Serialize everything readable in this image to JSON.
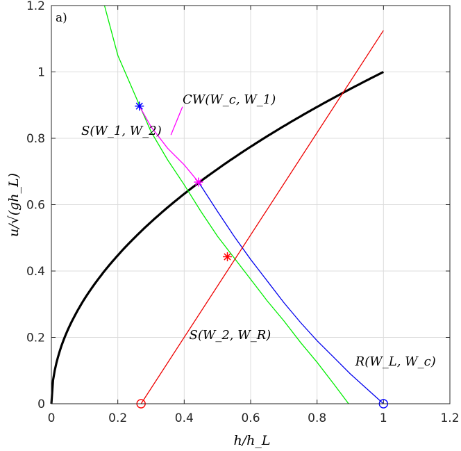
{
  "chart_data": {
    "type": "line",
    "panel_label": "a)",
    "xlabel": "h/h_L",
    "ylabel": "u/√(gh_L)",
    "xlim": [
      0,
      1.2
    ],
    "ylim": [
      0,
      1.2
    ],
    "xticks": [
      "0",
      "0.2",
      "0.4",
      "0.6",
      "0.8",
      "1",
      "1.2"
    ],
    "yticks": [
      "0",
      "0.2",
      "0.4",
      "0.6",
      "0.8",
      "1",
      "1.2"
    ],
    "grid": true,
    "curves": {
      "critical": {
        "color": "#000000",
        "equation": "u = sqrt(h)",
        "x_range": [
          0,
          1
        ]
      },
      "shock_W1_W2": {
        "color": "#00ee00",
        "points": [
          [
            0.16,
            1.2
          ],
          [
            0.2,
            1.05
          ],
          [
            0.265,
            0.9
          ],
          [
            0.3,
            0.82
          ],
          [
            0.35,
            0.735
          ],
          [
            0.4,
            0.66
          ],
          [
            0.45,
            0.58
          ],
          [
            0.5,
            0.505
          ],
          [
            0.55,
            0.44
          ],
          [
            0.6,
            0.375
          ],
          [
            0.65,
            0.31
          ],
          [
            0.7,
            0.25
          ],
          [
            0.75,
            0.185
          ],
          [
            0.8,
            0.125
          ],
          [
            0.85,
            0.06
          ],
          [
            0.895,
            0.0
          ]
        ]
      },
      "rarefaction_WL_Wc": {
        "color": "#0000ee",
        "points": [
          [
            0.443,
            0.668
          ],
          [
            0.5,
            0.58
          ],
          [
            0.55,
            0.505
          ],
          [
            0.6,
            0.435
          ],
          [
            0.65,
            0.37
          ],
          [
            0.7,
            0.305
          ],
          [
            0.75,
            0.245
          ],
          [
            0.8,
            0.19
          ],
          [
            0.85,
            0.14
          ],
          [
            0.9,
            0.09
          ],
          [
            0.95,
            0.045
          ],
          [
            1.0,
            0.0
          ]
        ]
      },
      "contact_Wc_W1": {
        "color": "#ff00ff",
        "points": [
          [
            0.265,
            0.897
          ],
          [
            0.3,
            0.835
          ],
          [
            0.35,
            0.77
          ],
          [
            0.4,
            0.72
          ],
          [
            0.443,
            0.668
          ]
        ]
      },
      "shock_W2_WR": {
        "color": "#ee0000",
        "points": [
          [
            0.27,
            0.0
          ],
          [
            1.0,
            1.125
          ]
        ]
      }
    },
    "markers": [
      {
        "x": 0.265,
        "y": 0.897,
        "symbol": "asterisk",
        "color": "#0000ff"
      },
      {
        "x": 0.443,
        "y": 0.668,
        "symbol": "asterisk",
        "color": "#ff00ff"
      },
      {
        "x": 0.53,
        "y": 0.443,
        "symbol": "asterisk",
        "color": "#ff0000"
      },
      {
        "x": 0.27,
        "y": 0.0,
        "symbol": "circle",
        "color": "#ff0000"
      },
      {
        "x": 1.0,
        "y": 0.0,
        "symbol": "circle",
        "color": "#0000ff"
      }
    ],
    "annotations": [
      {
        "label": "CW(W_c, W_1)",
        "x": 0.395,
        "y": 0.905,
        "leader": [
          [
            0.395,
            0.895
          ],
          [
            0.36,
            0.81
          ]
        ],
        "leader_color": "#ff00ff"
      },
      {
        "label": "S(W_1, W_2)",
        "x": 0.09,
        "y": 0.81
      },
      {
        "label": "S(W_2, W_R)",
        "x": 0.415,
        "y": 0.195
      },
      {
        "label": "R(W_L, W_c)",
        "x": 0.915,
        "y": 0.115
      }
    ]
  }
}
